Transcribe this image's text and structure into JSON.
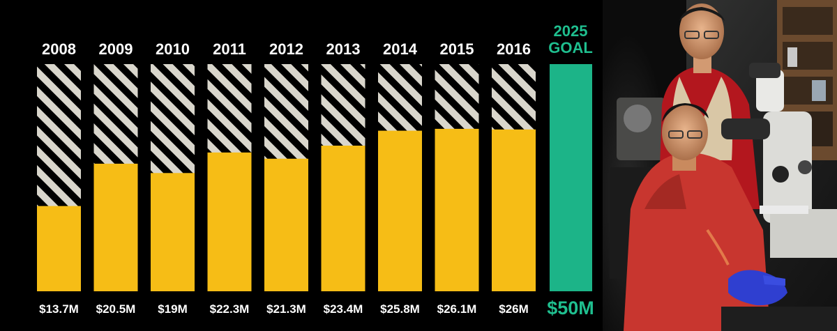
{
  "chart_data": {
    "type": "bar",
    "categories": [
      "2008",
      "2009",
      "2010",
      "2011",
      "2012",
      "2013",
      "2014",
      "2015",
      "2016"
    ],
    "values": [
      13.7,
      20.5,
      19,
      22.3,
      21.3,
      23.4,
      25.8,
      26.1,
      26
    ],
    "value_labels": [
      "$13.7M",
      "$20.5M",
      "$19M",
      "$22.3M",
      "$21.3M",
      "$23.4M",
      "$25.8M",
      "$26.1M",
      "$26M"
    ],
    "ylim": [
      0,
      50
    ],
    "unit": "$M",
    "goal": {
      "label_line1": "2025",
      "label_line2": "GOAL",
      "value": 50,
      "value_label": "$50M"
    },
    "grid": false,
    "colors": {
      "bar": "#f6bd16",
      "goal": "#1cb488",
      "goal_text": "#1fbf8f",
      "stripe_light": "#d9d6cc",
      "stripe_dark": "#000000",
      "background": "#000000",
      "text": "#ffffff"
    }
  },
  "photo": {
    "icon": "lab-researchers-photo"
  }
}
